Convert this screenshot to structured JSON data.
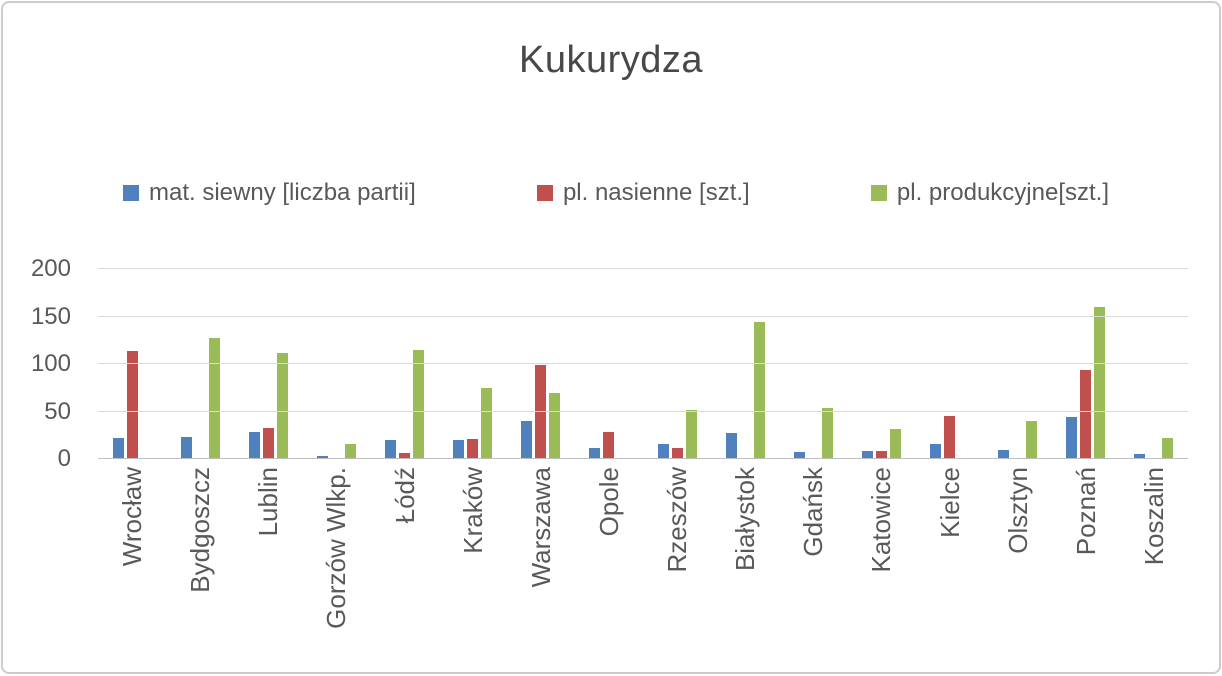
{
  "chart_data": {
    "type": "bar",
    "title": "Kukurydza",
    "categories": [
      "Wrocław",
      "Bydgoszcz",
      "Lublin",
      "Gorzów Wlkp.",
      "Łódź",
      "Kraków",
      "Warszawa",
      "Opole",
      "Rzeszów",
      "Białystok",
      "Gdańsk",
      "Katowice",
      "Kielce",
      "Olsztyn",
      "Poznań",
      "Koszalin"
    ],
    "series": [
      {
        "name": "mat. siewny [liczba partii]",
        "color": "#4e81bd",
        "values": [
          22,
          23,
          28,
          3,
          20,
          20,
          40,
          12,
          16,
          27,
          7,
          8,
          16,
          9,
          44,
          5
        ]
      },
      {
        "name": "pl. nasienne [szt.]",
        "color": "#c0504d",
        "values": [
          114,
          0,
          33,
          0,
          6,
          21,
          99,
          28,
          12,
          0,
          0,
          8,
          45,
          0,
          94,
          0
        ]
      },
      {
        "name": "pl. produkcyjne[szt.]",
        "color": "#9bbb59",
        "values": [
          0,
          127,
          112,
          16,
          115,
          75,
          69,
          0,
          52,
          144,
          54,
          32,
          0,
          40,
          160,
          22
        ]
      }
    ],
    "y_ticks": [
      0,
      50,
      100,
      150,
      200
    ],
    "ylim": [
      0,
      200
    ],
    "xlabel": "",
    "ylabel": "",
    "grid": true,
    "legend_position": "top-center"
  },
  "colors": {
    "text": "#595959",
    "title_text": "#484848",
    "gridline": "#d9d9d9",
    "axis_line": "#bfbfbf",
    "frame_border": "#c9cdd2",
    "background": "#ffffff"
  }
}
